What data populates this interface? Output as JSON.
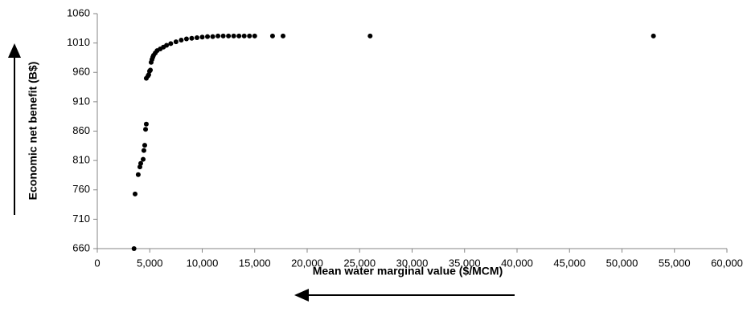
{
  "chart_data": {
    "type": "scatter",
    "x_label": "Mean water marginal value ($/MCM)",
    "y_label": "Economic net benefit (B$)",
    "color": "#000000",
    "x": [
      3500,
      3600,
      3900,
      4060,
      4140,
      4370,
      4440,
      4520,
      4600,
      4670,
      4670,
      4830,
      4900,
      4980,
      5060,
      5130,
      5210,
      5290,
      5360,
      5520,
      5700,
      6000,
      6300,
      6600,
      7000,
      7500,
      8000,
      8500,
      9000,
      9500,
      10000,
      10500,
      11000,
      11500,
      12000,
      12500,
      13000,
      13500,
      14000,
      14500,
      15000,
      16700,
      17700,
      26000,
      53000
    ],
    "values": [
      660,
      753,
      786,
      799,
      805,
      812,
      827,
      836,
      863,
      872,
      950,
      954,
      956,
      962,
      964,
      977,
      982,
      986,
      989,
      993,
      997,
      1000,
      1003,
      1006,
      1009,
      1012,
      1015,
      1017,
      1018,
      1019,
      1020,
      1021,
      1021,
      1022,
      1022,
      1022,
      1022,
      1022,
      1022,
      1022,
      1022,
      1022,
      1022,
      1022,
      1022
    ],
    "xlim": [
      0,
      60000
    ],
    "xticks": [
      0,
      {
        "value": 5000,
        "label": "5,000"
      },
      {
        "value": 10000,
        "label": "10,000"
      },
      {
        "value": 15000,
        "label": "15,000"
      },
      {
        "value": 20000,
        "label": "20,000"
      },
      {
        "value": 25000,
        "label": "25,000"
      },
      {
        "value": 30000,
        "label": "30,000"
      },
      {
        "value": 35000,
        "label": "35,000"
      },
      {
        "value": 40000,
        "label": "40,000"
      },
      {
        "value": 45000,
        "label": "45,000"
      },
      {
        "value": 50000,
        "label": "50,000"
      },
      {
        "value": 55000,
        "label": "55,000"
      },
      {
        "value": 60000,
        "label": "60,000"
      }
    ],
    "ylim": [
      660,
      1060
    ],
    "yticks": [
      660,
      710,
      760,
      810,
      860,
      910,
      960,
      1010,
      1060
    ]
  }
}
